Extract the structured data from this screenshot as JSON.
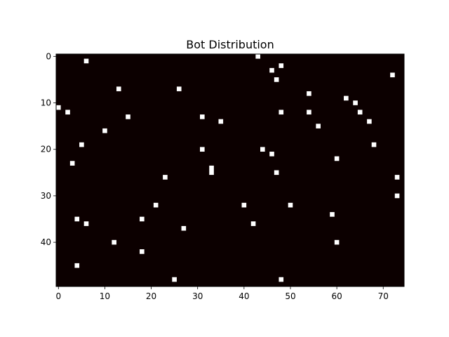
{
  "chart_data": {
    "type": "heatmap",
    "title": "Bot Distribution",
    "xlabel": "",
    "ylabel": "",
    "grid_cols": 75,
    "grid_rows": 50,
    "xlim": [
      -0.5,
      74.5
    ],
    "ylim": [
      49.5,
      -0.5
    ],
    "x_ticks": [
      0,
      10,
      20,
      30,
      40,
      50,
      60,
      70
    ],
    "y_ticks": [
      0,
      10,
      20,
      30,
      40
    ],
    "colors": {
      "background": "#0c0000",
      "bot": "#ffffff"
    },
    "grid": false,
    "points": [
      {
        "x": 43,
        "y": 0
      },
      {
        "x": 6,
        "y": 1
      },
      {
        "x": 48,
        "y": 2
      },
      {
        "x": 46,
        "y": 3
      },
      {
        "x": 72,
        "y": 4
      },
      {
        "x": 47,
        "y": 5
      },
      {
        "x": 13,
        "y": 7
      },
      {
        "x": 26,
        "y": 7
      },
      {
        "x": 54,
        "y": 8
      },
      {
        "x": 62,
        "y": 9
      },
      {
        "x": 64,
        "y": 10
      },
      {
        "x": 0,
        "y": 11
      },
      {
        "x": 2,
        "y": 12
      },
      {
        "x": 48,
        "y": 12
      },
      {
        "x": 54,
        "y": 12
      },
      {
        "x": 65,
        "y": 12
      },
      {
        "x": 15,
        "y": 13
      },
      {
        "x": 31,
        "y": 13
      },
      {
        "x": 35,
        "y": 14
      },
      {
        "x": 67,
        "y": 14
      },
      {
        "x": 56,
        "y": 15
      },
      {
        "x": 10,
        "y": 16
      },
      {
        "x": 5,
        "y": 19
      },
      {
        "x": 68,
        "y": 19
      },
      {
        "x": 31,
        "y": 20
      },
      {
        "x": 44,
        "y": 20
      },
      {
        "x": 46,
        "y": 21
      },
      {
        "x": 60,
        "y": 22
      },
      {
        "x": 3,
        "y": 23
      },
      {
        "x": 33,
        "y": 24
      },
      {
        "x": 33,
        "y": 25
      },
      {
        "x": 47,
        "y": 25
      },
      {
        "x": 23,
        "y": 26
      },
      {
        "x": 73,
        "y": 26
      },
      {
        "x": 73,
        "y": 30
      },
      {
        "x": 21,
        "y": 32
      },
      {
        "x": 40,
        "y": 32
      },
      {
        "x": 50,
        "y": 32
      },
      {
        "x": 59,
        "y": 34
      },
      {
        "x": 4,
        "y": 35
      },
      {
        "x": 18,
        "y": 35
      },
      {
        "x": 6,
        "y": 36
      },
      {
        "x": 42,
        "y": 36
      },
      {
        "x": 27,
        "y": 37
      },
      {
        "x": 12,
        "y": 40
      },
      {
        "x": 60,
        "y": 40
      },
      {
        "x": 18,
        "y": 42
      },
      {
        "x": 4,
        "y": 45
      },
      {
        "x": 25,
        "y": 48
      },
      {
        "x": 48,
        "y": 48
      }
    ]
  }
}
